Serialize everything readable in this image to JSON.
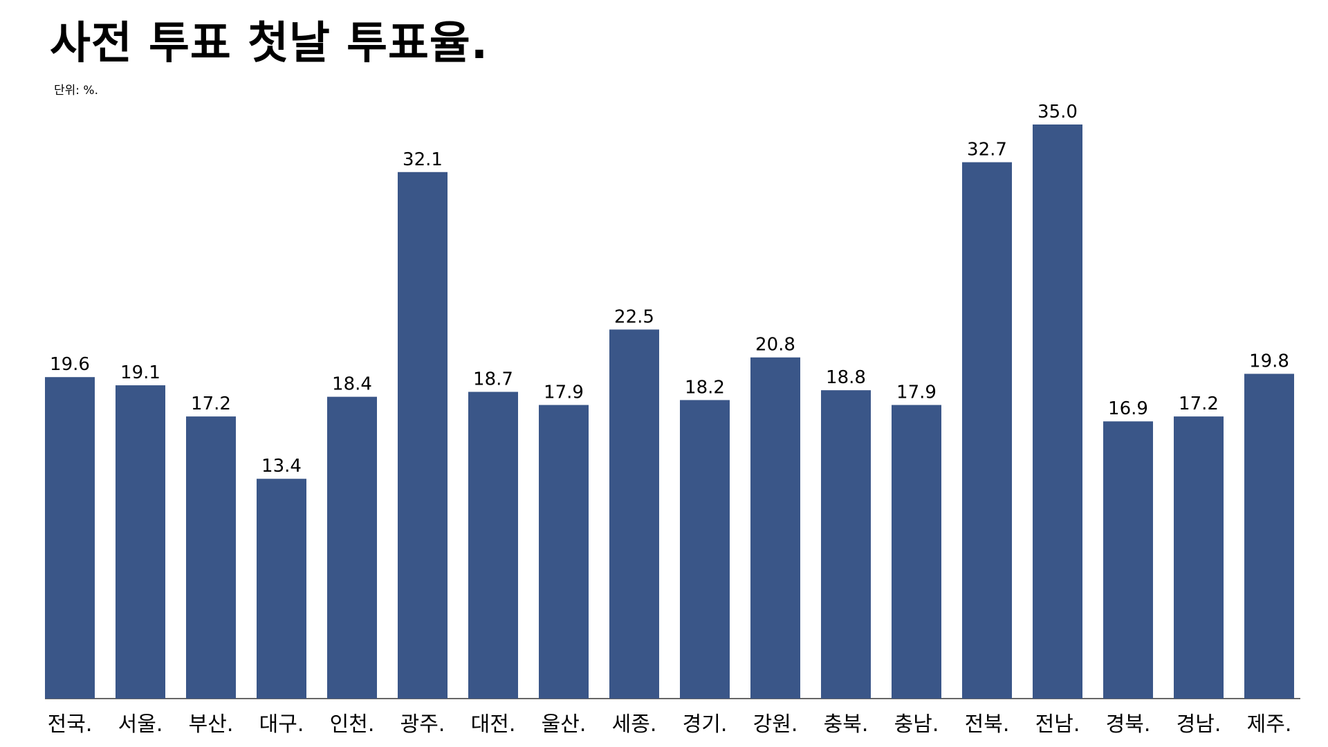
{
  "title": "사전 투표 첫날 투표율.",
  "unit_note": "단위: %.",
  "colors": {
    "bar": "#3a5688",
    "axis": "#333333",
    "background": "#ffffff"
  },
  "chart_data": {
    "type": "bar",
    "title": "사전 투표 첫날 투표율.",
    "xlabel": "",
    "ylabel": "",
    "ylim": [
      0,
      35.0
    ],
    "grid": false,
    "legend": "none",
    "categories": [
      "전국.",
      "서울.",
      "부산.",
      "대구.",
      "인천.",
      "광주.",
      "대전.",
      "울산.",
      "세종.",
      "경기.",
      "강원.",
      "충북.",
      "충남.",
      "전북.",
      "전남.",
      "경북.",
      "경남.",
      "제주."
    ],
    "values": [
      19.6,
      19.1,
      17.2,
      13.4,
      18.4,
      32.1,
      18.7,
      17.9,
      22.5,
      18.2,
      20.8,
      18.8,
      17.9,
      32.7,
      35.0,
      16.9,
      17.2,
      19.8
    ],
    "value_labels": [
      "19.6",
      "19.1",
      "17.2",
      "13.4",
      "18.4",
      "32.1",
      "18.7",
      "17.9",
      "22.5",
      "18.2",
      "20.8",
      "18.8",
      "17.9",
      "32.7",
      "35.0",
      "16.9",
      "17.2",
      "19.8"
    ]
  }
}
